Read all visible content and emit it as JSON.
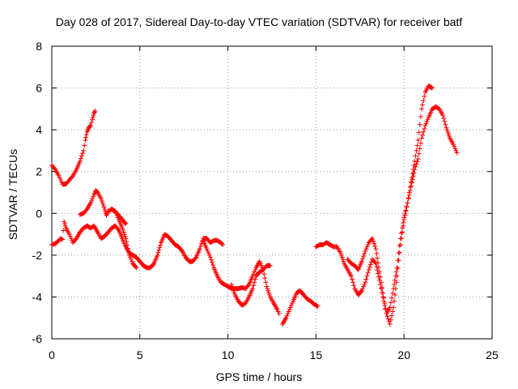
{
  "chart_data": {
    "type": "scatter",
    "title": "Day 028 of 2017, Sidereal Day-to-day VTEC variation (SDTVAR) for receiver batf",
    "xlabel": "GPS time / hours",
    "ylabel": "SDTVAR / TECUs",
    "xlim": [
      0,
      25
    ],
    "ylim": [
      -6,
      8
    ],
    "xticks": [
      "0",
      "5",
      "10",
      "15",
      "20",
      "25"
    ],
    "yticks": [
      "-6",
      "-4",
      "-2",
      "0",
      "2",
      "4",
      "6",
      "8"
    ],
    "grid": true,
    "marker": "+",
    "color": "#ff0000",
    "segments": [
      [
        [
          0.0,
          2.3
        ],
        [
          0.2,
          2.1
        ],
        [
          0.4,
          1.8
        ],
        [
          0.6,
          1.4
        ],
        [
          0.8,
          1.4
        ],
        [
          1.0,
          1.6
        ],
        [
          1.2,
          1.8
        ],
        [
          1.4,
          2.1
        ],
        [
          1.6,
          2.5
        ],
        [
          1.8,
          3.0
        ],
        [
          1.9,
          3.5
        ],
        [
          2.0,
          3.9
        ],
        [
          2.1,
          4.1
        ],
        [
          2.2,
          4.2
        ],
        [
          2.3,
          4.5
        ],
        [
          2.4,
          4.8
        ],
        [
          2.45,
          4.9
        ]
      ],
      [
        [
          1.6,
          -0.05
        ],
        [
          1.8,
          0.0
        ],
        [
          2.0,
          0.2
        ],
        [
          2.2,
          0.5
        ],
        [
          2.4,
          0.9
        ],
        [
          2.5,
          1.1
        ],
        [
          2.6,
          1.0
        ],
        [
          2.8,
          0.7
        ],
        [
          3.0,
          0.2
        ],
        [
          3.1,
          -0.1
        ],
        [
          3.2,
          0.1
        ],
        [
          3.4,
          0.2
        ],
        [
          3.6,
          0.1
        ],
        [
          3.8,
          -0.1
        ],
        [
          4.0,
          -0.3
        ],
        [
          4.2,
          -0.5
        ]
      ],
      [
        [
          0.0,
          -1.5
        ],
        [
          0.2,
          -1.45
        ],
        [
          0.4,
          -1.3
        ],
        [
          0.5,
          -1.2
        ],
        [
          0.6,
          -1.25
        ],
        [
          0.7,
          -0.4
        ],
        [
          0.8,
          -0.7
        ],
        [
          1.0,
          -1.0
        ],
        [
          1.2,
          -1.4
        ],
        [
          1.4,
          -1.2
        ],
        [
          1.6,
          -0.9
        ],
        [
          1.8,
          -0.7
        ],
        [
          2.0,
          -0.6
        ],
        [
          2.2,
          -0.7
        ],
        [
          2.4,
          -0.6
        ],
        [
          2.6,
          -0.9
        ],
        [
          2.8,
          -1.2
        ],
        [
          3.0,
          -1.1
        ],
        [
          3.2,
          -0.9
        ],
        [
          3.4,
          -0.7
        ],
        [
          3.6,
          -0.6
        ],
        [
          3.8,
          -0.8
        ],
        [
          4.0,
          -1.2
        ],
        [
          4.2,
          -1.6
        ],
        [
          4.4,
          -1.9
        ],
        [
          4.6,
          -2.0
        ],
        [
          4.8,
          -2.1
        ],
        [
          5.0,
          -2.3
        ],
        [
          5.2,
          -2.5
        ],
        [
          5.4,
          -2.6
        ],
        [
          5.6,
          -2.6
        ],
        [
          5.8,
          -2.4
        ],
        [
          6.0,
          -2.0
        ],
        [
          6.2,
          -1.4
        ],
        [
          6.4,
          -1.0
        ],
        [
          6.6,
          -1.1
        ],
        [
          6.8,
          -1.3
        ],
        [
          7.0,
          -1.5
        ],
        [
          7.2,
          -1.6
        ],
        [
          7.4,
          -1.8
        ],
        [
          7.6,
          -2.1
        ],
        [
          7.8,
          -2.3
        ],
        [
          8.0,
          -2.3
        ],
        [
          8.2,
          -2.1
        ],
        [
          8.4,
          -1.7
        ],
        [
          8.6,
          -1.2
        ],
        [
          8.8,
          -1.2
        ],
        [
          9.0,
          -1.4
        ],
        [
          9.2,
          -1.3
        ],
        [
          9.4,
          -1.3
        ],
        [
          9.6,
          -1.4
        ],
        [
          9.7,
          -1.5
        ]
      ],
      [
        [
          3.4,
          0.2
        ],
        [
          3.6,
          0.1
        ],
        [
          3.8,
          -0.3
        ],
        [
          4.0,
          -0.7
        ],
        [
          4.2,
          -1.2
        ],
        [
          4.4,
          -2.0
        ],
        [
          4.6,
          -2.4
        ],
        [
          4.8,
          -2.6
        ]
      ],
      [
        [
          8.6,
          -1.3
        ],
        [
          8.8,
          -1.7
        ],
        [
          9.0,
          -2.1
        ],
        [
          9.2,
          -2.6
        ],
        [
          9.4,
          -3.0
        ],
        [
          9.6,
          -3.3
        ],
        [
          9.8,
          -3.4
        ],
        [
          10.0,
          -3.5
        ],
        [
          10.2,
          -3.6
        ],
        [
          10.4,
          -3.6
        ],
        [
          10.6,
          -3.6
        ],
        [
          10.8,
          -3.55
        ],
        [
          11.0,
          -3.6
        ],
        [
          11.2,
          -3.4
        ],
        [
          11.4,
          -3.0
        ],
        [
          11.6,
          -2.6
        ],
        [
          11.8,
          -2.3
        ],
        [
          12.0,
          -2.7
        ],
        [
          12.2,
          -3.5
        ],
        [
          12.4,
          -4.0
        ],
        [
          12.6,
          -4.3
        ],
        [
          12.8,
          -4.6
        ],
        [
          12.9,
          -4.8
        ]
      ],
      [
        [
          10.2,
          -3.4
        ],
        [
          10.4,
          -3.9
        ],
        [
          10.6,
          -4.2
        ],
        [
          10.8,
          -4.4
        ],
        [
          11.0,
          -4.3
        ],
        [
          11.2,
          -4.0
        ],
        [
          11.4,
          -3.6
        ],
        [
          11.6,
          -3.0
        ],
        [
          11.8,
          -2.8
        ],
        [
          12.0,
          -2.7
        ],
        [
          12.2,
          -2.5
        ],
        [
          12.4,
          -2.5
        ]
      ],
      [
        [
          13.1,
          -5.3
        ],
        [
          13.3,
          -5.0
        ],
        [
          13.5,
          -4.6
        ],
        [
          13.7,
          -4.2
        ],
        [
          13.9,
          -3.8
        ],
        [
          14.1,
          -3.7
        ],
        [
          14.3,
          -3.9
        ],
        [
          14.5,
          -4.1
        ],
        [
          14.7,
          -4.2
        ],
        [
          14.9,
          -4.35
        ],
        [
          15.1,
          -4.45
        ]
      ],
      [
        [
          15.0,
          -1.6
        ],
        [
          15.2,
          -1.5
        ],
        [
          15.4,
          -1.5
        ],
        [
          15.6,
          -1.4
        ],
        [
          15.8,
          -1.5
        ],
        [
          16.0,
          -1.6
        ],
        [
          16.2,
          -1.6
        ],
        [
          16.4,
          -1.9
        ],
        [
          16.6,
          -2.4
        ],
        [
          16.8,
          -2.7
        ],
        [
          17.0,
          -3.0
        ],
        [
          17.2,
          -3.6
        ],
        [
          17.4,
          -3.9
        ],
        [
          17.6,
          -3.7
        ],
        [
          17.8,
          -3.3
        ],
        [
          18.0,
          -2.7
        ],
        [
          18.2,
          -2.2
        ],
        [
          18.4,
          -2.4
        ],
        [
          18.6,
          -3.2
        ],
        [
          18.8,
          -4.0
        ],
        [
          19.0,
          -4.8
        ],
        [
          19.2,
          -5.3
        ],
        [
          19.4,
          -4.5
        ],
        [
          19.6,
          -3.0
        ],
        [
          19.8,
          -1.5
        ],
        [
          20.0,
          -0.3
        ],
        [
          20.2,
          0.5
        ],
        [
          20.4,
          1.5
        ],
        [
          20.6,
          2.5
        ],
        [
          20.8,
          3.5
        ],
        [
          21.0,
          5.0
        ],
        [
          21.2,
          5.8
        ],
        [
          21.4,
          6.1
        ],
        [
          21.6,
          6.0
        ]
      ],
      [
        [
          16.8,
          -2.2
        ],
        [
          17.0,
          -2.4
        ],
        [
          17.2,
          -2.5
        ],
        [
          17.4,
          -2.7
        ],
        [
          17.6,
          -2.3
        ],
        [
          17.8,
          -1.8
        ],
        [
          18.0,
          -1.4
        ],
        [
          18.2,
          -1.2
        ],
        [
          18.4,
          -1.7
        ],
        [
          18.6,
          -2.8
        ],
        [
          18.8,
          -3.8
        ],
        [
          19.0,
          -4.8
        ],
        [
          19.2,
          -4.5
        ],
        [
          19.4,
          -3.6
        ],
        [
          19.6,
          -2.6
        ],
        [
          19.8,
          -1.2
        ],
        [
          20.0,
          -0.2
        ],
        [
          20.2,
          0.5
        ],
        [
          20.4,
          1.3
        ],
        [
          20.6,
          2.1
        ],
        [
          20.8,
          2.6
        ],
        [
          21.0,
          3.6
        ],
        [
          21.2,
          4.2
        ],
        [
          21.4,
          4.6
        ],
        [
          21.6,
          5.0
        ],
        [
          21.8,
          5.1
        ],
        [
          22.0,
          5.0
        ],
        [
          22.2,
          4.7
        ],
        [
          22.4,
          4.1
        ],
        [
          22.6,
          3.6
        ],
        [
          22.8,
          3.3
        ],
        [
          23.0,
          2.9
        ]
      ]
    ]
  }
}
